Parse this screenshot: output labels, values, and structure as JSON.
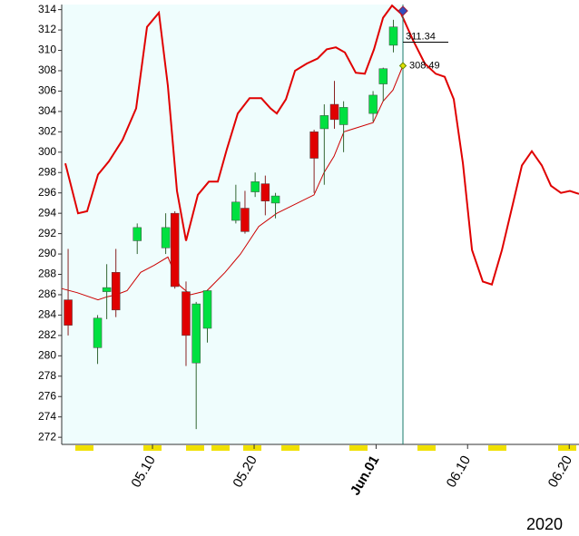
{
  "chart_data": {
    "type": "candlestick",
    "x": [
      1.7,
      4.6,
      5.5,
      6.4,
      8.5,
      11.3,
      12.2,
      13.3,
      14.3,
      15.4,
      18.2,
      19.1,
      20.1,
      21.1,
      22.1,
      25.9,
      26.9,
      27.9,
      28.8,
      31.7,
      32.7,
      33.7
    ],
    "open": [
      285.5,
      280.8,
      286.3,
      288.2,
      291.3,
      290.6,
      294.0,
      286.3,
      279.3,
      282.7,
      293.3,
      294.5,
      296.1,
      296.9,
      295.0,
      302.0,
      302.3,
      304.7,
      302.7,
      303.8,
      306.7,
      310.5
    ],
    "high": [
      290.5,
      284.0,
      289.0,
      290.5,
      293.0,
      294.0,
      294.2,
      287.3,
      285.3,
      286.5,
      296.8,
      296.2,
      298.0,
      297.7,
      296.0,
      302.2,
      304.7,
      307.0,
      305.0,
      306.0,
      308.3,
      313.0
    ],
    "low": [
      282.0,
      279.2,
      283.6,
      283.8,
      290.0,
      290.0,
      286.6,
      279.0,
      272.8,
      281.3,
      293.0,
      292.0,
      295.6,
      293.8,
      293.5,
      296.0,
      296.8,
      302.3,
      300.0,
      303.0,
      305.0,
      309.8
    ],
    "close": [
      283.0,
      283.7,
      286.7,
      284.5,
      292.6,
      292.6,
      286.8,
      282.0,
      285.1,
      286.4,
      295.1,
      292.2,
      297.1,
      295.2,
      295.7,
      299.4,
      303.6,
      303.2,
      304.4,
      305.6,
      308.2,
      312.3
    ],
    "up_color": "#00e040",
    "down_color": "#e00000",
    "overlays": [
      {
        "color": "#e00000",
        "width": 2,
        "x": [
          1.43,
          2.68,
          3.57,
          4.64,
          5.71,
          7.05,
          8.39,
          9.46,
          10.63,
          11.52,
          12.41,
          13.3,
          14.46,
          15.54,
          16.43,
          17.32,
          18.39,
          19.55,
          20.71,
          21.61,
          22.23,
          23.13,
          24.02,
          25.18,
          26.25,
          27.14,
          28.04,
          28.93,
          30.0,
          30.89,
          31.79,
          32.68,
          33.57,
          34.46,
          35.63,
          36.79,
          37.86,
          38.75,
          39.64,
          40.54,
          41.43,
          42.5,
          43.39,
          44.38,
          45.45,
          46.34,
          47.32,
          48.3,
          49.2,
          50.18,
          51.07,
          51.96
        ],
        "values": [
          298.9,
          294.0,
          294.2,
          297.8,
          299.1,
          301.2,
          304.3,
          312.3,
          313.7,
          306.5,
          296.2,
          291.3,
          295.8,
          297.1,
          297.1,
          300.3,
          303.8,
          305.3,
          305.3,
          304.3,
          303.8,
          305.2,
          308.0,
          308.7,
          309.2,
          310.1,
          310.3,
          309.8,
          307.8,
          307.7,
          310.1,
          313.2,
          314.4,
          313.6,
          311.0,
          308.7,
          307.7,
          307.4,
          305.2,
          298.9,
          290.4,
          287.3,
          287.0,
          290.4,
          294.9,
          298.7,
          300.1,
          298.7,
          296.7,
          296.0,
          296.2,
          295.9
        ]
      },
      {
        "color": "#cc0000",
        "width": 1,
        "x": [
          1.07,
          2.59,
          4.64,
          5.54,
          6.43,
          7.5,
          8.84,
          10.18,
          11.52,
          12.68,
          13.75,
          15.36,
          17.14,
          18.66,
          20.45,
          22.23,
          25.89,
          26.88,
          27.86,
          28.84,
          31.7,
          32.68,
          33.66,
          34.64
        ],
        "values": [
          286.6,
          286.2,
          285.5,
          285.8,
          286.0,
          286.4,
          288.2,
          288.9,
          289.7,
          286.9,
          286.0,
          286.4,
          288.2,
          290.0,
          292.7,
          294.0,
          295.8,
          298.0,
          299.6,
          302.0,
          302.9,
          305.0,
          306.1,
          308.49
        ]
      }
    ],
    "annotations": [
      {
        "label": "311.34",
        "value": 311.34
      },
      {
        "label": "308.49",
        "value": 308.49
      }
    ],
    "xlim": [
      1.07,
      51.96
    ],
    "ylim": [
      271.3,
      314.5
    ],
    "yticks": [
      272,
      274,
      276,
      278,
      280,
      282,
      284,
      286,
      288,
      290,
      292,
      294,
      296,
      298,
      300,
      302,
      304,
      306,
      308,
      310,
      312,
      314
    ],
    "xticks": [
      {
        "value": 10,
        "label": "05.10"
      },
      {
        "value": 20,
        "label": "05.20"
      },
      {
        "value": 32,
        "label": "Jun.01"
      },
      {
        "value": 41,
        "label": "06.10"
      },
      {
        "value": 51,
        "label": "06.20"
      }
    ],
    "xtick_colors": [
      "#555555",
      "#555555",
      "#8b0000",
      "#555555",
      "#555555"
    ],
    "year": "2020"
  }
}
